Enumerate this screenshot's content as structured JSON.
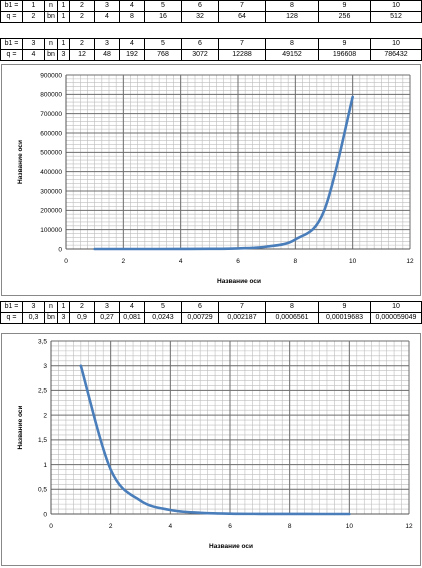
{
  "tables": [
    {
      "rows": [
        [
          "b1 =",
          "1",
          "n",
          "1",
          "2",
          "3",
          "4",
          "5",
          "6",
          "7",
          "8",
          "9",
          "10"
        ],
        [
          "q =",
          "2",
          "bn",
          "1",
          "2",
          "4",
          "8",
          "16",
          "32",
          "64",
          "128",
          "256",
          "512"
        ]
      ]
    },
    {
      "rows": [
        [
          "b1 =",
          "3",
          "n",
          "1",
          "2",
          "3",
          "4",
          "5",
          "6",
          "7",
          "8",
          "9",
          "10"
        ],
        [
          "q =",
          "4",
          "bn",
          "3",
          "12",
          "48",
          "192",
          "768",
          "3072",
          "12288",
          "49152",
          "196608",
          "786432"
        ]
      ]
    },
    {
      "rows": [
        [
          "b1 =",
          "3",
          "n",
          "1",
          "2",
          "3",
          "4",
          "5",
          "6",
          "7",
          "8",
          "9",
          "10"
        ],
        [
          "q =",
          "0,3",
          "bn",
          "3",
          "0,9",
          "0,27",
          "0,081",
          "0,0243",
          "0,00729",
          "0,002187",
          "0,0006561",
          "0,00019683",
          "0,000059049"
        ]
      ]
    }
  ],
  "chart_data": [
    {
      "type": "line",
      "xlabel": "Название оси",
      "ylabel": "Название оси",
      "xlim": [
        0,
        12
      ],
      "ylim": [
        0,
        900000
      ],
      "xticks": [
        "0",
        "2",
        "4",
        "6",
        "8",
        "10",
        "12"
      ],
      "yticks": [
        "0",
        "100000",
        "200000",
        "300000",
        "400000",
        "500000",
        "600000",
        "700000",
        "800000",
        "900000"
      ],
      "grid": true,
      "series_color": "#4a7ebb",
      "series": [
        {
          "x": [
            1,
            2,
            3,
            4,
            5,
            6,
            7,
            8,
            9,
            10
          ],
          "values": [
            3,
            12,
            48,
            192,
            768,
            3072,
            12288,
            49152,
            196608,
            786432
          ]
        }
      ]
    },
    {
      "type": "line",
      "xlabel": "Название оси",
      "ylabel": "Название оси",
      "xlim": [
        0,
        12
      ],
      "ylim": [
        0,
        3.5
      ],
      "xticks": [
        "0",
        "2",
        "4",
        "6",
        "8",
        "10",
        "12"
      ],
      "yticks": [
        "0",
        "0,5",
        "1",
        "1,5",
        "2",
        "2,5",
        "3",
        "3,5"
      ],
      "grid": true,
      "series_color": "#4a7ebb",
      "series": [
        {
          "x": [
            1,
            2,
            3,
            4,
            5,
            6,
            7,
            8,
            9,
            10
          ],
          "values": [
            3,
            0.9,
            0.27,
            0.081,
            0.0243,
            0.00729,
            0.002187,
            0.0006561,
            0.00019683,
            5.9049e-05
          ]
        }
      ]
    }
  ]
}
